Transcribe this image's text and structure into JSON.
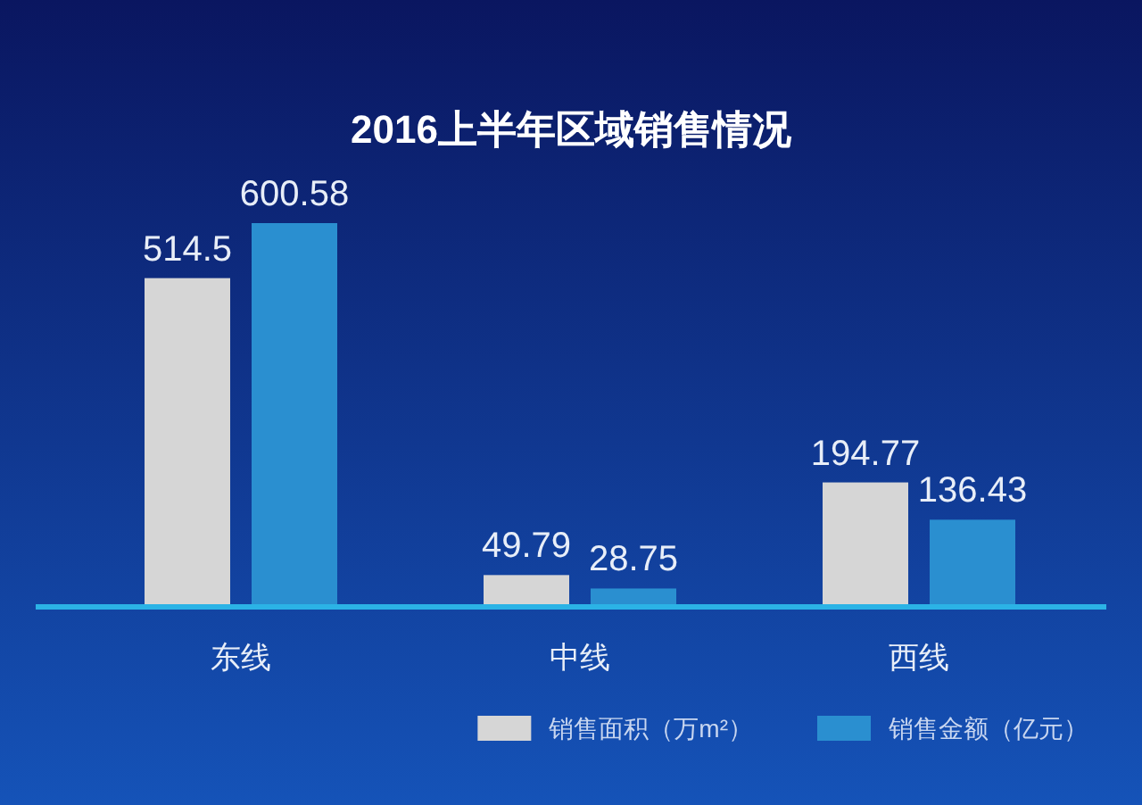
{
  "chart_data": {
    "type": "bar",
    "title": "2016上半年区域销售情况",
    "categories": [
      "东线",
      "中线",
      "西线"
    ],
    "series": [
      {
        "name": "销售面积（万m²）",
        "color": "#d6d6d6",
        "values": [
          514.5,
          49.79,
          194.77
        ]
      },
      {
        "name": "销售金额（亿元）",
        "color": "#2a8fd0",
        "values": [
          600.58,
          28.75,
          136.43
        ]
      }
    ],
    "data_labels": true,
    "legend": "bottom right"
  }
}
